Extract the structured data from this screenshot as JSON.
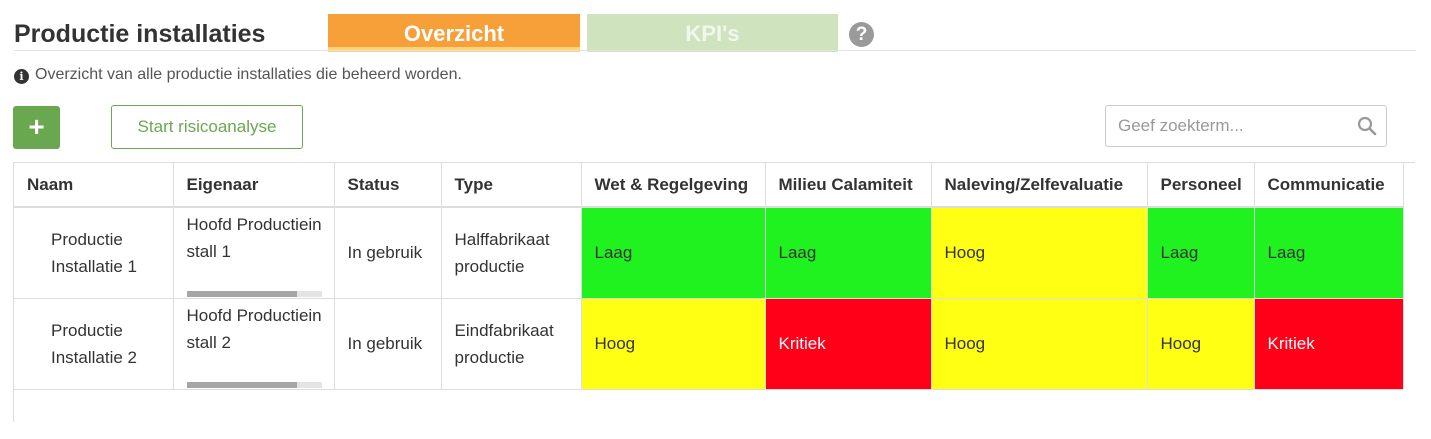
{
  "page": {
    "title": "Productie installaties",
    "tabs": [
      {
        "label": "Overzicht",
        "active": true
      },
      {
        "label": "KPI's",
        "active": false
      }
    ],
    "help_icon": "question-circle-icon",
    "info_text": "Overzicht van alle productie installaties die beheerd worden."
  },
  "toolbar": {
    "add_label": "+",
    "risk_label": "Start risicoanalyse",
    "search_placeholder": "Geef zoekterm..."
  },
  "table": {
    "columns": [
      "Naam",
      "Eigenaar",
      "Status",
      "Type",
      "Wet & Regelgeving",
      "Milieu Calamiteit",
      "Naleving/Zelfevaluatie",
      "Personeel",
      "Communicatie"
    ],
    "rows": [
      {
        "naam": "Productie Installatie 1",
        "eigenaar": "Hoofd Productieinstall 1",
        "eigenaar_progress": 0.82,
        "status": "In gebruik",
        "type": "Halffabrikaat productie",
        "levels": [
          "Laag",
          "Laag",
          "Hoog",
          "Laag",
          "Laag"
        ]
      },
      {
        "naam": "Productie Installatie 2",
        "eigenaar": "Hoofd Productieinstall 2",
        "eigenaar_progress": 0.82,
        "status": "In gebruik",
        "type": "Eindfabrikaat productie",
        "levels": [
          "Hoog",
          "Kritiek",
          "Hoog",
          "Hoog",
          "Kritiek"
        ]
      }
    ]
  },
  "colors": {
    "Laag": "#1ff21f",
    "Hoog": "#ffff14",
    "Kritiek": "#ff0018",
    "accent_orange": "#f7a03a",
    "accent_green": "#6aa84f"
  }
}
